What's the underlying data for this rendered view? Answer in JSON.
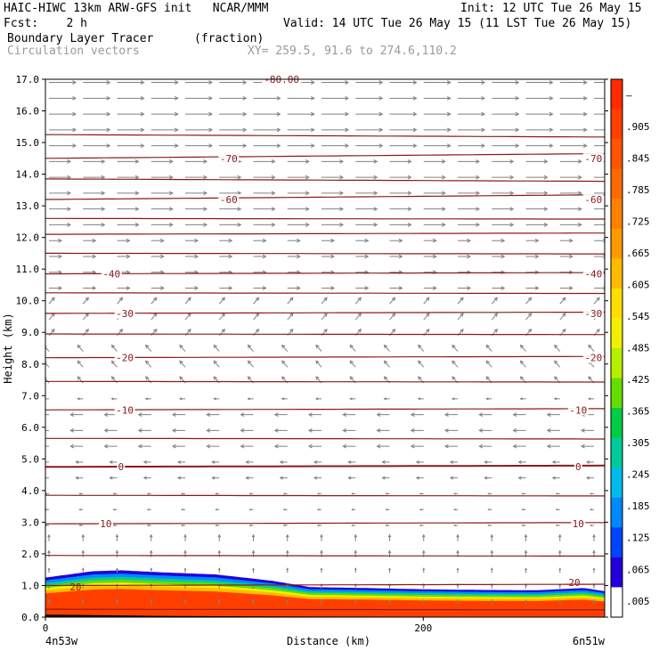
{
  "header": {
    "title_line": "HAIC-HIWC 13km ARW-GFS init   NCAR/MMM",
    "fcst_line": "Fcst:    2 h",
    "init_line": "Init: 12 UTC Tue 26 May 15",
    "valid_line": "Valid: 14 UTC Tue 26 May 15 (11 LST Tue 26 May 15)",
    "field_name": "Boundary Layer Tracer",
    "field_units": "(fraction)",
    "vector_label": "Circulation vectors",
    "xy_label": "XY= 259.5, 91.6 to 274.6,110.2"
  },
  "colors": {
    "contour": "#8b1a1a",
    "vector": "#808080",
    "frame": "#000000"
  },
  "chart_data": {
    "type": "heatmap",
    "ylabel": "Height (km)",
    "xlabel": "Distance (km)",
    "ylim": [
      0,
      17
    ],
    "xlim": [
      0,
      296
    ],
    "y_ticks": [
      "0.0",
      "1.0",
      "2.0",
      "3.0",
      "4.0",
      "5.0",
      "6.0",
      "7.0",
      "8.0",
      "9.0",
      "10.0",
      "11.0",
      "12.0",
      "13.0",
      "14.0",
      "15.0",
      "16.0",
      "17.0"
    ],
    "x_ticks": [
      {
        "value": 0,
        "label": "0"
      },
      {
        "value": 200,
        "label": "200"
      }
    ],
    "x_endpoint_left": "4n53w",
    "x_endpoint_right": "6n51w",
    "colorbar": {
      "labels": [
        "–",
        ".905",
        ".845",
        ".785",
        ".725",
        ".665",
        ".605",
        ".545",
        ".485",
        ".425",
        ".365",
        ".305",
        ".245",
        ".185",
        ".125",
        ".065",
        ".005"
      ],
      "colors": [
        "#ff2a00",
        "#ff3f00",
        "#ff5500",
        "#ff6a00",
        "#ff8000",
        "#ff9900",
        "#ffbb00",
        "#ffdd00",
        "#f0f000",
        "#b8ee00",
        "#66dd00",
        "#00cc44",
        "#00cc99",
        "#00bbee",
        "#0088ff",
        "#0044ff",
        "#2200dd",
        "#ffffff"
      ]
    },
    "tracer_top_km": [
      {
        "x": 0,
        "top": 1.25
      },
      {
        "x": 25,
        "top": 1.45
      },
      {
        "x": 40,
        "top": 1.48
      },
      {
        "x": 60,
        "top": 1.42
      },
      {
        "x": 90,
        "top": 1.35
      },
      {
        "x": 120,
        "top": 1.15
      },
      {
        "x": 140,
        "top": 0.95
      },
      {
        "x": 170,
        "top": 0.92
      },
      {
        "x": 200,
        "top": 0.88
      },
      {
        "x": 230,
        "top": 0.86
      },
      {
        "x": 260,
        "top": 0.85
      },
      {
        "x": 285,
        "top": 0.92
      },
      {
        "x": 296,
        "top": 0.82
      }
    ],
    "contour_heights_km": [
      0.25,
      1.0,
      1.95,
      2.95,
      3.85,
      4.75,
      5.65,
      6.55,
      7.45,
      8.2,
      8.95,
      9.6,
      10.25,
      10.85,
      11.5,
      12.1,
      12.6,
      13.2,
      13.85,
      14.5,
      15.25
    ],
    "contour_labels": [
      {
        "x": 16,
        "y": 0.95,
        "text": "20"
      },
      {
        "x": 280,
        "y": 1.1,
        "text": "20"
      },
      {
        "x": 32,
        "y": 2.95,
        "text": "10"
      },
      {
        "x": 282,
        "y": 2.95,
        "text": "10"
      },
      {
        "x": 40,
        "y": 4.75,
        "text": "0"
      },
      {
        "x": 282,
        "y": 4.75,
        "text": "0"
      },
      {
        "x": 42,
        "y": 6.55,
        "text": "-10"
      },
      {
        "x": 282,
        "y": 6.55,
        "text": "-10"
      },
      {
        "x": 42,
        "y": 8.2,
        "text": "-20"
      },
      {
        "x": 290,
        "y": 8.2,
        "text": "-20"
      },
      {
        "x": 42,
        "y": 9.6,
        "text": "-30"
      },
      {
        "x": 290,
        "y": 9.6,
        "text": "-30"
      },
      {
        "x": 35,
        "y": 10.85,
        "text": "-40"
      },
      {
        "x": 290,
        "y": 10.85,
        "text": "-40"
      },
      {
        "x": 97,
        "y": 13.2,
        "text": "-60"
      },
      {
        "x": 290,
        "y": 13.2,
        "text": "-60"
      },
      {
        "x": 97,
        "y": 14.5,
        "text": "-70"
      },
      {
        "x": 290,
        "y": 14.5,
        "text": "-70"
      },
      {
        "x": 125,
        "y": 17.0,
        "text": "-80.00"
      }
    ]
  }
}
